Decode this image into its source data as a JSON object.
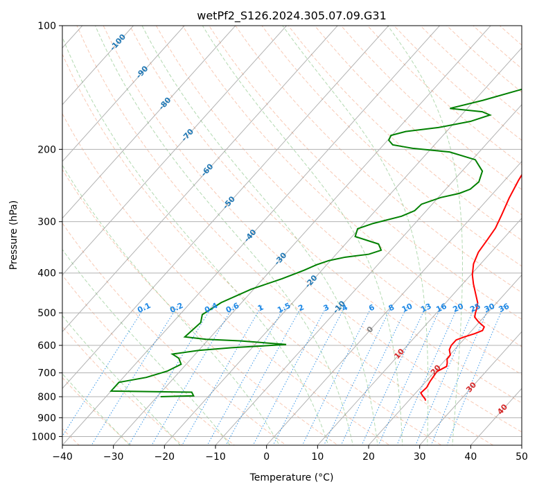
{
  "chart_data": {
    "type": "line",
    "title": "wetPf2_S126.2024.305.07.09.G31",
    "xlabel": "Temperature (°C)",
    "ylabel": "Pressure (hPa)",
    "xlim": [
      -40,
      50
    ],
    "ylim": [
      1050,
      100
    ],
    "y_scale": "log",
    "x_ticks": [
      "−40",
      "−30",
      "−20",
      "−10",
      "0",
      "10",
      "20",
      "30",
      "40",
      "50"
    ],
    "y_ticks": [
      "100",
      "200",
      "300",
      "400",
      "500",
      "600",
      "700",
      "800",
      "900",
      "1000"
    ],
    "grid": true,
    "series": [
      {
        "color": "#ff0000",
        "points": [
          [
            23.3,
            818
          ],
          [
            22.9,
            810
          ],
          [
            21.8,
            795
          ],
          [
            21.0,
            783
          ],
          [
            21.2,
            760
          ],
          [
            20.8,
            735
          ],
          [
            20.6,
            715
          ],
          [
            20.4,
            695
          ],
          [
            21.4,
            675
          ],
          [
            20.9,
            662
          ],
          [
            20.2,
            648
          ],
          [
            20.1,
            633
          ],
          [
            19.0,
            615
          ],
          [
            18.6,
            600
          ],
          [
            18.6,
            582
          ],
          [
            19.7,
            572
          ],
          [
            21.1,
            562
          ],
          [
            22.1,
            552
          ],
          [
            21.8,
            541
          ],
          [
            19.8,
            526
          ],
          [
            18.2,
            512
          ],
          [
            17.6,
            500
          ],
          [
            17.1,
            488
          ],
          [
            16.3,
            473
          ],
          [
            14.6,
            453
          ],
          [
            12.1,
            425
          ],
          [
            10.3,
            404
          ],
          [
            8.6,
            380
          ],
          [
            7.5,
            356
          ],
          [
            7.1,
            334
          ],
          [
            6.6,
            311
          ],
          [
            5.5,
            289
          ],
          [
            4.0,
            263
          ],
          [
            2.7,
            238
          ],
          [
            1.7,
            216
          ],
          [
            1.1,
            196
          ],
          [
            1.0,
            181
          ],
          [
            1.1,
            169
          ],
          [
            1.4,
            156
          ],
          [
            1.6,
            144
          ],
          [
            1.9,
            133
          ],
          [
            2.2,
            122
          ],
          [
            2.5,
            113
          ],
          [
            2.8,
            105
          ],
          [
            3.3,
            100
          ]
        ]
      },
      {
        "color": "#008000",
        "points": [
          [
            -29.3,
            800
          ],
          [
            -23.0,
            796
          ],
          [
            -24.0,
            780
          ],
          [
            -40.0,
            775
          ],
          [
            -40.0,
            738
          ],
          [
            -35.5,
            718
          ],
          [
            -32.5,
            693
          ],
          [
            -31.0,
            667
          ],
          [
            -32.5,
            645
          ],
          [
            -34.5,
            630
          ],
          [
            -30.0,
            617
          ],
          [
            -24.0,
            608
          ],
          [
            -13.9,
            597
          ],
          [
            -23.6,
            585
          ],
          [
            -30.5,
            580
          ],
          [
            -35.1,
            572
          ],
          [
            -34.5,
            528
          ],
          [
            -35.6,
            505
          ],
          [
            -34.0,
            472
          ],
          [
            -30.5,
            438
          ],
          [
            -26.3,
            413
          ],
          [
            -23.5,
            394
          ],
          [
            -22.0,
            382
          ],
          [
            -20.3,
            373
          ],
          [
            -17.7,
            366
          ],
          [
            -13.6,
            360
          ],
          [
            -11.9,
            352
          ],
          [
            -13.5,
            340
          ],
          [
            -19.4,
            326
          ],
          [
            -20.3,
            312
          ],
          [
            -18.2,
            303
          ],
          [
            -13.9,
            291
          ],
          [
            -12.3,
            282
          ],
          [
            -12.1,
            272
          ],
          [
            -9.5,
            262
          ],
          [
            -6.6,
            256
          ],
          [
            -5.2,
            250
          ],
          [
            -4.8,
            240
          ],
          [
            -6.0,
            226
          ],
          [
            -9.4,
            212
          ],
          [
            -15.8,
            203
          ],
          [
            -23.5,
            199
          ],
          [
            -28.2,
            195
          ],
          [
            -29.8,
            190
          ],
          [
            -30.2,
            185
          ],
          [
            -28.0,
            181
          ],
          [
            -22.3,
            177
          ],
          [
            -17.1,
            171
          ],
          [
            -14.4,
            165
          ],
          [
            -16.5,
            162
          ],
          [
            -23.4,
            159
          ],
          [
            -18.4,
            152
          ],
          [
            -12.8,
            143
          ],
          [
            -8.8,
            134
          ],
          [
            -4.6,
            122
          ],
          [
            -1.7,
            114
          ],
          [
            1.0,
            105
          ],
          [
            1.6,
            100
          ]
        ]
      }
    ],
    "dry_adiabats": [
      -40,
      -30,
      -20,
      -10,
      0,
      10,
      20,
      30,
      40,
      50,
      60,
      70,
      80,
      90,
      100,
      110,
      120,
      130,
      140,
      150,
      160,
      170,
      180,
      190,
      200,
      210,
      220
    ],
    "moist_adiabats": [
      -30,
      -20,
      -10,
      0,
      10,
      15,
      20,
      25,
      30,
      35
    ],
    "mixing_ratio_lines": [
      "0.1",
      "0.2",
      "0.4",
      "0.6",
      "1",
      "1.5",
      "2",
      "3",
      "4",
      "6",
      "8",
      "10",
      "13",
      "16",
      "20",
      "25",
      "30",
      "36"
    ],
    "isotherm_labels": [
      {
        "text": "-100",
        "t": -100,
        "p": 110,
        "color": "#1f77b4"
      },
      {
        "text": "-90",
        "t": -90,
        "p": 130,
        "color": "#1f77b4"
      },
      {
        "text": "-80",
        "t": -80,
        "p": 155,
        "color": "#1f77b4"
      },
      {
        "text": "-70",
        "t": -70,
        "p": 185,
        "color": "#1f77b4"
      },
      {
        "text": "-60",
        "t": -60,
        "p": 225,
        "color": "#1f77b4"
      },
      {
        "text": "-50",
        "t": -50,
        "p": 270,
        "color": "#1f77b4"
      },
      {
        "text": "-40",
        "t": -40,
        "p": 325,
        "color": "#1f77b4"
      },
      {
        "text": "-30",
        "t": -30,
        "p": 370,
        "color": "#1f77b4"
      },
      {
        "text": "-20",
        "t": -20,
        "p": 420,
        "color": "#1f77b4"
      },
      {
        "text": "-10",
        "t": -10,
        "p": 485,
        "color": "#1f77b4"
      },
      {
        "text": "0",
        "t": 0,
        "p": 550,
        "color": "#7f7f7f"
      },
      {
        "text": "10",
        "t": 10,
        "p": 630,
        "color": "#d62728"
      },
      {
        "text": "20",
        "t": 20,
        "p": 690,
        "color": "#d62728"
      },
      {
        "text": "30",
        "t": 30,
        "p": 760,
        "color": "#d62728"
      },
      {
        "text": "40",
        "t": 40,
        "p": 860,
        "color": "#d62728"
      }
    ],
    "colors": {
      "dry_adiabat": "#f4a582",
      "moist_adiabat": "#7fbf7b",
      "mixing_ratio": "#1e88e5",
      "isotherm": "#7f7f7f",
      "grid": "#b0b0b0"
    }
  }
}
